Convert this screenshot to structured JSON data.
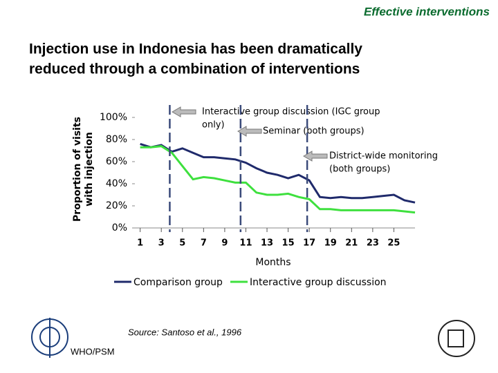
{
  "header": "Effective interventions",
  "chart_data": {
    "type": "line",
    "title_lines": [
      "Injection use in Indonesia has been dramatically",
      "reduced through a combination of interventions"
    ],
    "y_label_lines": [
      "Proportion of visits",
      "with injection"
    ],
    "x_label": "Months",
    "x": [
      1,
      2,
      3,
      4,
      5,
      6,
      7,
      8,
      9,
      10,
      11,
      12,
      13,
      14,
      15,
      16,
      17,
      18,
      19,
      20,
      21,
      22,
      23,
      24,
      25,
      26,
      27
    ],
    "series": [
      {
        "name": "Comparison group",
        "color": "#1f2a6b",
        "values": [
          76,
          73,
          75,
          69,
          72,
          68,
          64,
          64,
          63,
          62,
          59,
          54,
          50,
          48,
          45,
          48,
          43,
          28,
          27,
          28,
          27,
          27,
          28,
          29,
          30,
          25,
          23
        ]
      },
      {
        "name": "Interactive group discussion",
        "color": "#3ee03e",
        "values": [
          73,
          73,
          74,
          68,
          56,
          44,
          46,
          45,
          43,
          41,
          41,
          32,
          30,
          30,
          31,
          28,
          26,
          17,
          17,
          16,
          16,
          16,
          16,
          16,
          16,
          15,
          14
        ]
      }
    ],
    "xlim": [
      0.5,
      27
    ],
    "xticks": [
      1,
      3,
      5,
      7,
      9,
      11,
      13,
      15,
      17,
      19,
      21,
      23,
      25
    ],
    "ylim": [
      0,
      100
    ],
    "yticks": [
      {
        "value": 0,
        "label": "0%"
      },
      {
        "value": 20,
        "label": "20%"
      },
      {
        "value": 40,
        "label": "40%"
      },
      {
        "value": 60,
        "label": "60%"
      },
      {
        "value": 80,
        "label": "80%"
      },
      {
        "value": 100,
        "label": "100%"
      }
    ],
    "annotations": [
      {
        "x": 3.8,
        "label_lines": [
          "Interactive group discussion (IGC group",
          "only)"
        ]
      },
      {
        "x": 10.5,
        "label_lines": [
          "Seminar (both groups)"
        ]
      },
      {
        "x": 16.8,
        "label_lines": [
          "District-wide monitoring",
          "(both groups)"
        ]
      }
    ]
  },
  "source": "Source: Santoso et al., 1996",
  "footer": "WHO/PSM"
}
